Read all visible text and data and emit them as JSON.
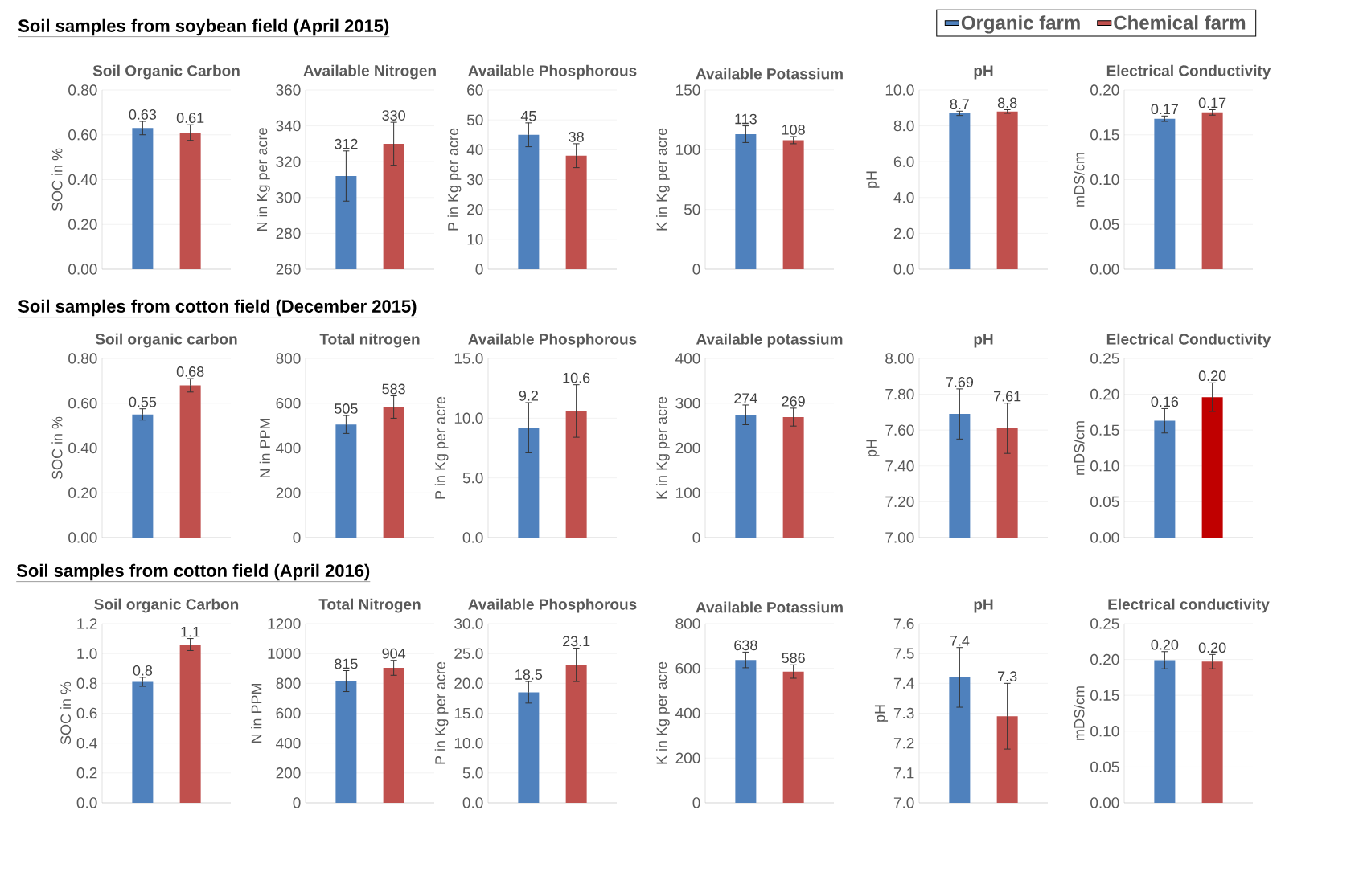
{
  "chart_data": [
    {
      "type": "bar",
      "title": "Soil Organic Carbon",
      "ylabel": "SOC in %",
      "annotations": [
        "Soil samples from soybean field (April 2015)"
      ],
      "categories": [
        null
      ],
      "grid": "y",
      "ylim": [
        0,
        0.8
      ],
      "yticks": [
        {
          "value": 0,
          "label": "0.00"
        },
        {
          "value": 0.2,
          "label": "0.20"
        },
        {
          "value": 0.4,
          "label": "0.40"
        },
        {
          "value": 0.6,
          "label": "0.60"
        },
        {
          "value": 0.8,
          "label": "0.80"
        }
      ],
      "series": [
        {
          "color": "#4f81bd",
          "values": [
            0.63
          ],
          "errors": [
            0.03
          ],
          "value_labels": [
            "0.63"
          ]
        },
        {
          "color": "#c0504d",
          "values": [
            0.61
          ],
          "errors": [
            0.035
          ],
          "value_labels": [
            "0.61"
          ]
        }
      ]
    },
    {
      "type": "bar",
      "title": "Available Nitrogen",
      "ylabel": "N in Kg per acre",
      "categories": [
        null
      ],
      "grid": "y",
      "ylim": [
        260,
        360
      ],
      "yticks": [
        260,
        280,
        300,
        320,
        340,
        360
      ],
      "series": [
        {
          "color": "#4f81bd",
          "values": [
            312
          ],
          "errors": [
            14
          ],
          "value_labels": [
            "312"
          ]
        },
        {
          "color": "#c0504d",
          "values": [
            330
          ],
          "errors": [
            12
          ],
          "value_labels": [
            "330"
          ]
        }
      ]
    },
    {
      "type": "bar",
      "title": "Available Phosphorous",
      "ylabel": "P in Kg per acre",
      "categories": [
        null
      ],
      "grid": "y",
      "ylim": [
        0,
        60
      ],
      "yticks": [
        0,
        10,
        20,
        30,
        40,
        50,
        60
      ],
      "series": [
        {
          "color": "#4f81bd",
          "values": [
            45
          ],
          "errors": [
            4
          ],
          "value_labels": [
            "45"
          ]
        },
        {
          "color": "#c0504d",
          "values": [
            38
          ],
          "errors": [
            4
          ],
          "value_labels": [
            "38"
          ]
        }
      ]
    },
    {
      "type": "bar",
      "title": "Available Potassium",
      "ylabel": "K in Kg per acre",
      "categories": [
        null
      ],
      "grid": "y",
      "ylim": [
        0,
        150
      ],
      "yticks": [
        0,
        50,
        100,
        150
      ],
      "series": [
        {
          "color": "#4f81bd",
          "values": [
            113
          ],
          "errors": [
            7
          ],
          "value_labels": [
            "113"
          ]
        },
        {
          "color": "#c0504d",
          "values": [
            108
          ],
          "errors": [
            3
          ],
          "value_labels": [
            "108"
          ]
        }
      ]
    },
    {
      "type": "bar",
      "title": "pH",
      "ylabel": "pH",
      "categories": [
        null
      ],
      "grid": "y",
      "legend": "top right",
      "ylim": [
        0,
        10
      ],
      "yticks": [
        {
          "value": 0,
          "label": "0.0"
        },
        {
          "value": 2,
          "label": "2.0"
        },
        {
          "value": 4,
          "label": "4.0"
        },
        {
          "value": 6,
          "label": "6.0"
        },
        {
          "value": 8,
          "label": "8.0"
        },
        {
          "value": 10,
          "label": "10.0"
        }
      ],
      "series": [
        {
          "name": "Organic farm",
          "color": "#4f81bd",
          "values": [
            8.7
          ],
          "errors": [
            0.12
          ],
          "value_labels": [
            "8.7"
          ]
        },
        {
          "name": "Chemical farm",
          "color": "#c0504d",
          "values": [
            8.8
          ],
          "errors": [
            0.1
          ],
          "value_labels": [
            "8.8"
          ]
        }
      ]
    },
    {
      "type": "bar",
      "title": "Electrical Conductivity",
      "ylabel": "mDS/cm",
      "categories": [
        null
      ],
      "grid": "y",
      "ylim": [
        0,
        0.2
      ],
      "yticks": [
        {
          "value": 0,
          "label": "0.00"
        },
        {
          "value": 0.05,
          "label": "0.05"
        },
        {
          "value": 0.1,
          "label": "0.10"
        },
        {
          "value": 0.15,
          "label": "0.15"
        },
        {
          "value": 0.2,
          "label": "0.20"
        }
      ],
      "series": [
        {
          "color": "#4f81bd",
          "values": [
            0.168
          ],
          "errors": [
            0.003
          ],
          "value_labels": [
            "0.17"
          ]
        },
        {
          "color": "#c0504d",
          "values": [
            0.175
          ],
          "errors": [
            0.003
          ],
          "value_labels": [
            "0.17"
          ]
        }
      ]
    },
    {
      "type": "bar",
      "title": "Soil organic carbon",
      "ylabel": "SOC in %",
      "annotations": [
        "Soil samples from cotton field (December 2015)"
      ],
      "categories": [
        null
      ],
      "grid": "y",
      "ylim": [
        0,
        0.8
      ],
      "yticks": [
        {
          "value": 0,
          "label": "0.00"
        },
        {
          "value": 0.2,
          "label": "0.20"
        },
        {
          "value": 0.4,
          "label": "0.40"
        },
        {
          "value": 0.6,
          "label": "0.60"
        },
        {
          "value": 0.8,
          "label": "0.80"
        }
      ],
      "series": [
        {
          "color": "#4f81bd",
          "values": [
            0.55
          ],
          "errors": [
            0.025
          ],
          "value_labels": [
            "0.55"
          ]
        },
        {
          "color": "#c0504d",
          "values": [
            0.68
          ],
          "errors": [
            0.03
          ],
          "value_labels": [
            "0.68"
          ]
        }
      ]
    },
    {
      "type": "bar",
      "title": "Total nitrogen",
      "ylabel": "N in PPM",
      "categories": [
        null
      ],
      "grid": "y",
      "ylim": [
        0,
        800
      ],
      "yticks": [
        0,
        200,
        400,
        600,
        800
      ],
      "series": [
        {
          "color": "#4f81bd",
          "values": [
            505
          ],
          "errors": [
            40
          ],
          "value_labels": [
            "505"
          ]
        },
        {
          "color": "#c0504d",
          "values": [
            583
          ],
          "errors": [
            50
          ],
          "value_labels": [
            "583"
          ]
        }
      ]
    },
    {
      "type": "bar",
      "title": "Available Phosphorous",
      "ylabel": "P in Kg per acre",
      "categories": [
        null
      ],
      "grid": "y",
      "ylim": [
        0,
        15
      ],
      "yticks": [
        {
          "value": 0,
          "label": "0.0"
        },
        {
          "value": 5,
          "label": "5.0"
        },
        {
          "value": 10,
          "label": "10.0"
        },
        {
          "value": 15,
          "label": "15.0"
        }
      ],
      "series": [
        {
          "color": "#4f81bd",
          "values": [
            9.2
          ],
          "errors": [
            2.1
          ],
          "value_labels": [
            "9.2"
          ]
        },
        {
          "color": "#c0504d",
          "values": [
            10.6
          ],
          "errors": [
            2.2
          ],
          "value_labels": [
            "10.6"
          ]
        }
      ]
    },
    {
      "type": "bar",
      "title": "Available potassium",
      "ylabel": "K in Kg per acre",
      "categories": [
        null
      ],
      "grid": "y",
      "ylim": [
        0,
        400
      ],
      "yticks": [
        0,
        100,
        200,
        300,
        400
      ],
      "series": [
        {
          "color": "#4f81bd",
          "values": [
            274
          ],
          "errors": [
            22
          ],
          "value_labels": [
            "274"
          ]
        },
        {
          "color": "#c0504d",
          "values": [
            269
          ],
          "errors": [
            20
          ],
          "value_labels": [
            "269"
          ]
        }
      ]
    },
    {
      "type": "bar",
      "title": "pH",
      "ylabel": "pH",
      "categories": [
        null
      ],
      "grid": "y",
      "ylim": [
        7,
        8
      ],
      "yticks": [
        {
          "value": 7,
          "label": "7.00"
        },
        {
          "value": 7.2,
          "label": "7.20"
        },
        {
          "value": 7.4,
          "label": "7.40"
        },
        {
          "value": 7.6,
          "label": "7.60"
        },
        {
          "value": 7.8,
          "label": "7.80"
        },
        {
          "value": 8,
          "label": "8.00"
        }
      ],
      "series": [
        {
          "color": "#4f81bd",
          "values": [
            7.69
          ],
          "errors": [
            0.14
          ],
          "value_labels": [
            "7.69"
          ]
        },
        {
          "color": "#c0504d",
          "values": [
            7.61
          ],
          "errors": [
            0.14
          ],
          "value_labels": [
            "7.61"
          ]
        }
      ]
    },
    {
      "type": "bar",
      "title": "Electrical Conductivity",
      "ylabel": "mDS/cm",
      "categories": [
        null
      ],
      "grid": "y",
      "ylim": [
        0,
        0.25
      ],
      "yticks": [
        {
          "value": 0,
          "label": "0.00"
        },
        {
          "value": 0.05,
          "label": "0.05"
        },
        {
          "value": 0.1,
          "label": "0.10"
        },
        {
          "value": 0.15,
          "label": "0.15"
        },
        {
          "value": 0.2,
          "label": "0.20"
        },
        {
          "value": 0.25,
          "label": "0.25"
        }
      ],
      "series": [
        {
          "color": "#4f81bd",
          "values": [
            0.163
          ],
          "errors": [
            0.017
          ],
          "value_labels": [
            "0.16"
          ]
        },
        {
          "color": "#c00000",
          "values": [
            0.196
          ],
          "errors": [
            0.02
          ],
          "value_labels": [
            "0.20"
          ]
        }
      ]
    },
    {
      "type": "bar",
      "title": "Soil organic Carbon",
      "ylabel": "SOC in %",
      "annotations": [
        "Soil samples from cotton field (April 2016)"
      ],
      "categories": [
        null
      ],
      "grid": "y",
      "ylim": [
        0,
        1.2
      ],
      "yticks": [
        {
          "value": 0,
          "label": "0.0"
        },
        {
          "value": 0.2,
          "label": "0.2"
        },
        {
          "value": 0.4,
          "label": "0.4"
        },
        {
          "value": 0.6,
          "label": "0.6"
        },
        {
          "value": 0.8,
          "label": "0.8"
        },
        {
          "value": 1,
          "label": "1.0"
        },
        {
          "value": 1.2,
          "label": "1.2"
        }
      ],
      "series": [
        {
          "color": "#4f81bd",
          "values": [
            0.81
          ],
          "errors": [
            0.03
          ],
          "value_labels": [
            "0.8"
          ]
        },
        {
          "color": "#c0504d",
          "values": [
            1.06
          ],
          "errors": [
            0.04
          ],
          "value_labels": [
            "1.1"
          ]
        }
      ]
    },
    {
      "type": "bar",
      "title": "Total Nitrogen",
      "ylabel": "N in PPM",
      "categories": [
        null
      ],
      "grid": "y",
      "ylim": [
        0,
        1200
      ],
      "yticks": [
        0,
        200,
        400,
        600,
        800,
        1000,
        1200
      ],
      "series": [
        {
          "color": "#4f81bd",
          "values": [
            815
          ],
          "errors": [
            70
          ],
          "value_labels": [
            "815"
          ]
        },
        {
          "color": "#c0504d",
          "values": [
            904
          ],
          "errors": [
            50
          ],
          "value_labels": [
            "904"
          ]
        }
      ]
    },
    {
      "type": "bar",
      "title": "Available Phosphorous",
      "ylabel": "P in Kg per acre",
      "categories": [
        null
      ],
      "grid": "y",
      "ylim": [
        0,
        30
      ],
      "yticks": [
        {
          "value": 0,
          "label": "0.0"
        },
        {
          "value": 5,
          "label": "5.0"
        },
        {
          "value": 10,
          "label": "10.0"
        },
        {
          "value": 15,
          "label": "15.0"
        },
        {
          "value": 20,
          "label": "20.0"
        },
        {
          "value": 25,
          "label": "25.0"
        },
        {
          "value": 30,
          "label": "30.0"
        }
      ],
      "series": [
        {
          "color": "#4f81bd",
          "values": [
            18.5
          ],
          "errors": [
            1.8
          ],
          "value_labels": [
            "18.5"
          ]
        },
        {
          "color": "#c0504d",
          "values": [
            23.1
          ],
          "errors": [
            2.8
          ],
          "value_labels": [
            "23.1"
          ]
        }
      ]
    },
    {
      "type": "bar",
      "title": "Available Potassium",
      "ylabel": "K in Kg per acre",
      "categories": [
        null
      ],
      "grid": "y",
      "ylim": [
        0,
        800
      ],
      "yticks": [
        0,
        200,
        400,
        600,
        800
      ],
      "series": [
        {
          "color": "#4f81bd",
          "values": [
            638
          ],
          "errors": [
            35
          ],
          "value_labels": [
            "638"
          ]
        },
        {
          "color": "#c0504d",
          "values": [
            586
          ],
          "errors": [
            30
          ],
          "value_labels": [
            "586"
          ]
        }
      ]
    },
    {
      "type": "bar",
      "title": "pH",
      "ylabel": "pH",
      "categories": [
        null
      ],
      "grid": "y",
      "ylim": [
        7,
        7.6
      ],
      "yticks": [
        {
          "value": 7,
          "label": "7.0"
        },
        {
          "value": 7.1,
          "label": "7.1"
        },
        {
          "value": 7.2,
          "label": "7.2"
        },
        {
          "value": 7.3,
          "label": "7.3"
        },
        {
          "value": 7.4,
          "label": "7.4"
        },
        {
          "value": 7.5,
          "label": "7.5"
        },
        {
          "value": 7.6,
          "label": "7.6"
        }
      ],
      "series": [
        {
          "color": "#4f81bd",
          "values": [
            7.42
          ],
          "errors": [
            0.1
          ],
          "value_labels": [
            "7.4"
          ]
        },
        {
          "color": "#c0504d",
          "values": [
            7.29
          ],
          "errors": [
            0.11
          ],
          "value_labels": [
            "7.3"
          ]
        }
      ]
    },
    {
      "type": "bar",
      "title": "Electrical conductivity",
      "ylabel": "mDS/cm",
      "categories": [
        null
      ],
      "grid": "y",
      "ylim": [
        0,
        0.25
      ],
      "yticks": [
        {
          "value": 0,
          "label": "0.00"
        },
        {
          "value": 0.05,
          "label": "0.05"
        },
        {
          "value": 0.1,
          "label": "0.10"
        },
        {
          "value": 0.15,
          "label": "0.15"
        },
        {
          "value": 0.2,
          "label": "0.20"
        },
        {
          "value": 0.25,
          "label": "0.25"
        }
      ],
      "series": [
        {
          "color": "#4f81bd",
          "values": [
            0.199
          ],
          "errors": [
            0.012
          ],
          "value_labels": [
            "0.20"
          ]
        },
        {
          "color": "#c0504d",
          "values": [
            0.197
          ],
          "errors": [
            0.01
          ],
          "value_labels": [
            "0.20"
          ]
        }
      ]
    }
  ]
}
